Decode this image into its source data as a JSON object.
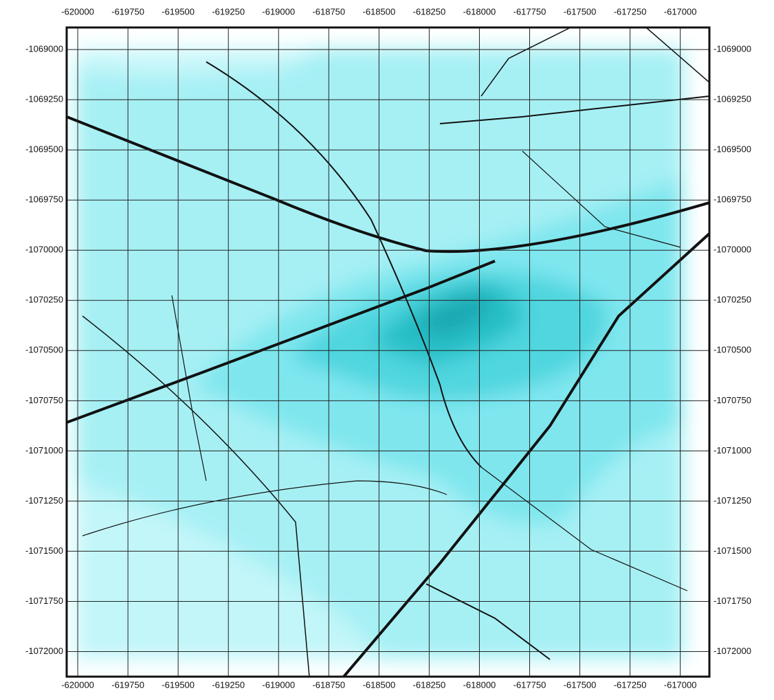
{
  "map": {
    "xlim": [
      -620055,
      -616855
    ],
    "ylim": [
      -1068890,
      -1072125
    ],
    "xticks": [
      -620000,
      -619750,
      -619500,
      -619250,
      -619000,
      -618750,
      -618500,
      -618250,
      -618000,
      -617750,
      -617500,
      -617250,
      -617000
    ],
    "yticks": [
      -1069000,
      -1069250,
      -1069500,
      -1069750,
      -1070000,
      -1070250,
      -1070500,
      -1070750,
      -1071000,
      -1071250,
      -1071500,
      -1071750,
      -1072000
    ]
  }
}
